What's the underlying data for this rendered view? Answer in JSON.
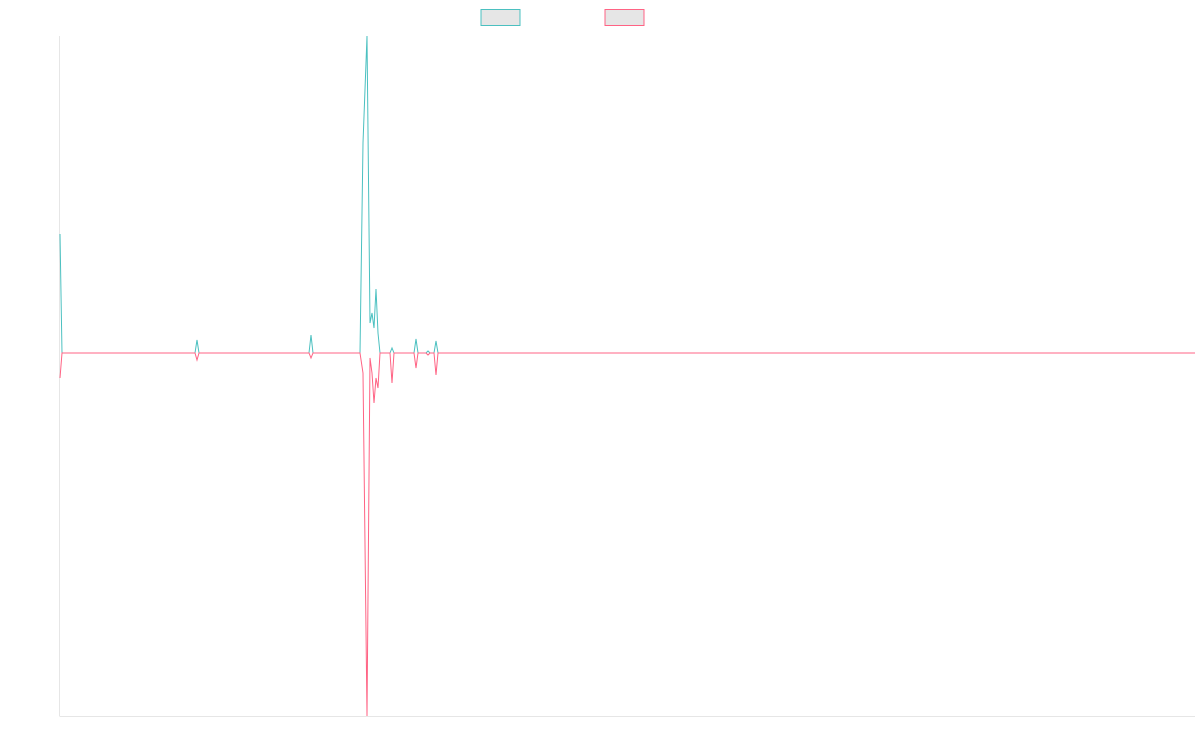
{
  "chart_data": {
    "type": "line",
    "x": [
      0,
      2,
      135,
      137,
      139,
      249,
      251,
      253,
      300,
      303,
      307,
      310,
      312,
      314,
      316,
      318,
      320,
      330,
      332,
      334,
      354,
      356,
      358,
      366,
      368,
      370,
      374,
      376,
      378,
      1135
    ],
    "xlim": [
      0,
      1135
    ],
    "ylim": [
      -363,
      317
    ],
    "series": [
      {
        "color": "#4bc0c0",
        "values": [
          119,
          0,
          0,
          13,
          0,
          0,
          18,
          0,
          0,
          210,
          317,
          30,
          40,
          25,
          64,
          20,
          0,
          0,
          5,
          0,
          0,
          14,
          0,
          0,
          2,
          0,
          0,
          12,
          0,
          0
        ]
      },
      {
        "color": "#ff6384",
        "values": [
          -25,
          0,
          0,
          -7,
          0,
          0,
          -5,
          0,
          0,
          -20,
          -363,
          -5,
          -20,
          -50,
          -25,
          -35,
          0,
          0,
          -30,
          0,
          0,
          -15,
          0,
          0,
          -2,
          0,
          0,
          -22,
          0,
          0
        ]
      }
    ]
  }
}
